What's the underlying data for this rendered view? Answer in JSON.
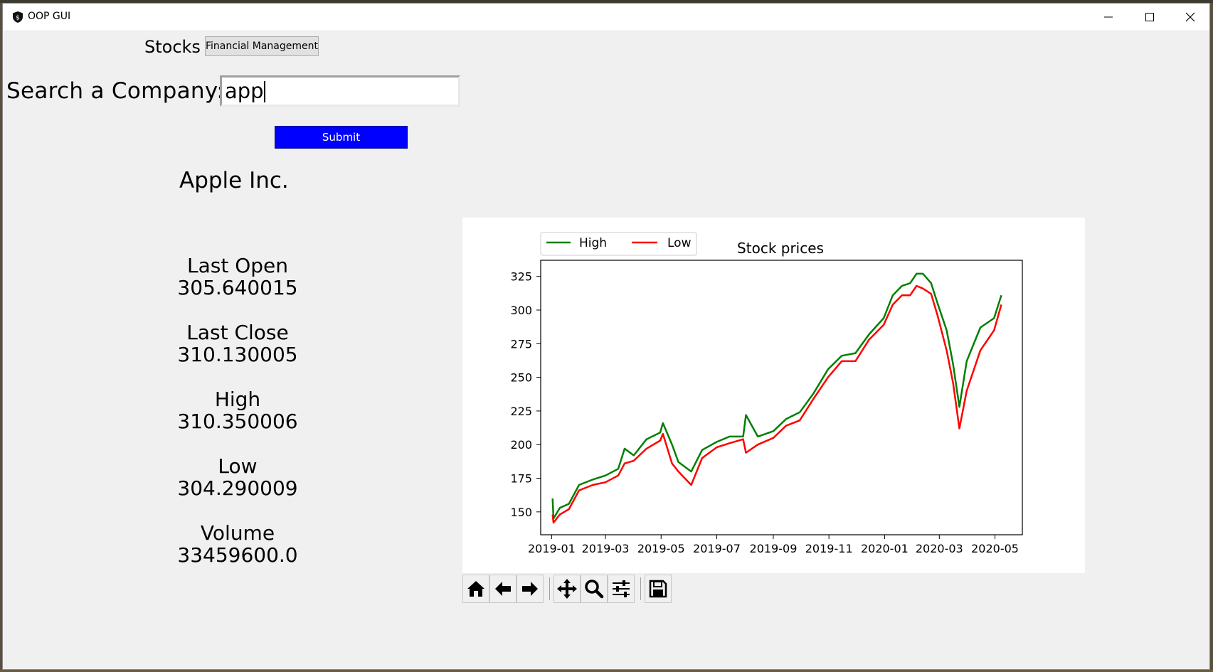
{
  "window": {
    "title": "OOP GUI",
    "controls": [
      "minimize-icon",
      "maximize-icon",
      "close-icon"
    ]
  },
  "header": {
    "stocks_label": "Stocks",
    "financial_button_label": "Financial Management"
  },
  "search": {
    "label": "Search a Company:",
    "value": "app",
    "submit_label": "Submit"
  },
  "company": {
    "name": "Apple Inc."
  },
  "stats": [
    {
      "label": "Last Open",
      "value": "305.640015"
    },
    {
      "label": "Last Close",
      "value": "310.130005"
    },
    {
      "label": "High",
      "value": "310.350006"
    },
    {
      "label": "Low",
      "value": "304.290009"
    },
    {
      "label": "Volume",
      "value": "33459600.0"
    }
  ],
  "toolbar": {
    "icons": [
      "home-icon",
      "back-icon",
      "forward-icon",
      "pan-icon",
      "zoom-icon",
      "configure-subplots-icon",
      "save-icon"
    ]
  },
  "chart_data": {
    "type": "line",
    "title": "Stock prices",
    "xlabel": "",
    "ylabel": "",
    "x_ticks": [
      "2019-01",
      "2019-03",
      "2019-05",
      "2019-07",
      "2019-09",
      "2019-11",
      "2020-01",
      "2020-03",
      "2020-05"
    ],
    "y_ticks": [
      150,
      175,
      200,
      225,
      250,
      275,
      300,
      325
    ],
    "xlim": [
      "2018-12-20",
      "2020-05-31"
    ],
    "ylim": [
      133,
      337
    ],
    "legend": {
      "placement": "top-left, above axes"
    },
    "grid": false,
    "series": [
      {
        "name": "High",
        "color": "#008000",
        "x": [
          "2019-01-02",
          "2019-01-03",
          "2019-01-10",
          "2019-01-20",
          "2019-01-31",
          "2019-02-15",
          "2019-03-01",
          "2019-03-15",
          "2019-03-22",
          "2019-04-01",
          "2019-04-15",
          "2019-04-30",
          "2019-05-03",
          "2019-05-13",
          "2019-05-20",
          "2019-06-03",
          "2019-06-15",
          "2019-07-01",
          "2019-07-15",
          "2019-07-30",
          "2019-08-02",
          "2019-08-15",
          "2019-09-01",
          "2019-09-15",
          "2019-09-30",
          "2019-10-15",
          "2019-10-31",
          "2019-11-15",
          "2019-11-30",
          "2019-12-15",
          "2019-12-31",
          "2020-01-10",
          "2020-01-20",
          "2020-01-29",
          "2020-02-05",
          "2020-02-12",
          "2020-02-21",
          "2020-02-28",
          "2020-03-09",
          "2020-03-16",
          "2020-03-23",
          "2020-03-31",
          "2020-04-15",
          "2020-04-30",
          "2020-05-08"
        ],
        "values": [
          160,
          145,
          153,
          156,
          170,
          174,
          177,
          182,
          197,
          192,
          204,
          209,
          216,
          200,
          187,
          180,
          196,
          202,
          206,
          206,
          222,
          206,
          210,
          219,
          224,
          238,
          256,
          266,
          268,
          282,
          294,
          311,
          318,
          320,
          327,
          327,
          320,
          305,
          285,
          260,
          228,
          262,
          287,
          294,
          311
        ]
      },
      {
        "name": "Low",
        "color": "#ff0000",
        "x": [
          "2019-01-02",
          "2019-01-03",
          "2019-01-10",
          "2019-01-20",
          "2019-01-31",
          "2019-02-15",
          "2019-03-01",
          "2019-03-15",
          "2019-03-22",
          "2019-04-01",
          "2019-04-15",
          "2019-04-30",
          "2019-05-03",
          "2019-05-13",
          "2019-05-20",
          "2019-06-03",
          "2019-06-15",
          "2019-07-01",
          "2019-07-15",
          "2019-07-30",
          "2019-08-02",
          "2019-08-15",
          "2019-09-01",
          "2019-09-15",
          "2019-09-30",
          "2019-10-15",
          "2019-10-31",
          "2019-11-15",
          "2019-11-30",
          "2019-12-15",
          "2019-12-31",
          "2020-01-10",
          "2020-01-20",
          "2020-01-29",
          "2020-02-05",
          "2020-02-12",
          "2020-02-21",
          "2020-02-28",
          "2020-03-09",
          "2020-03-16",
          "2020-03-23",
          "2020-03-31",
          "2020-04-15",
          "2020-04-30",
          "2020-05-08"
        ],
        "values": [
          148,
          142,
          148,
          152,
          166,
          170,
          172,
          177,
          186,
          188,
          197,
          203,
          208,
          186,
          180,
          170,
          190,
          198,
          201,
          204,
          194,
          200,
          205,
          214,
          218,
          234,
          250,
          262,
          262,
          278,
          289,
          304,
          311,
          311,
          318,
          316,
          312,
          296,
          270,
          246,
          212,
          240,
          270,
          285,
          304
        ]
      }
    ]
  }
}
